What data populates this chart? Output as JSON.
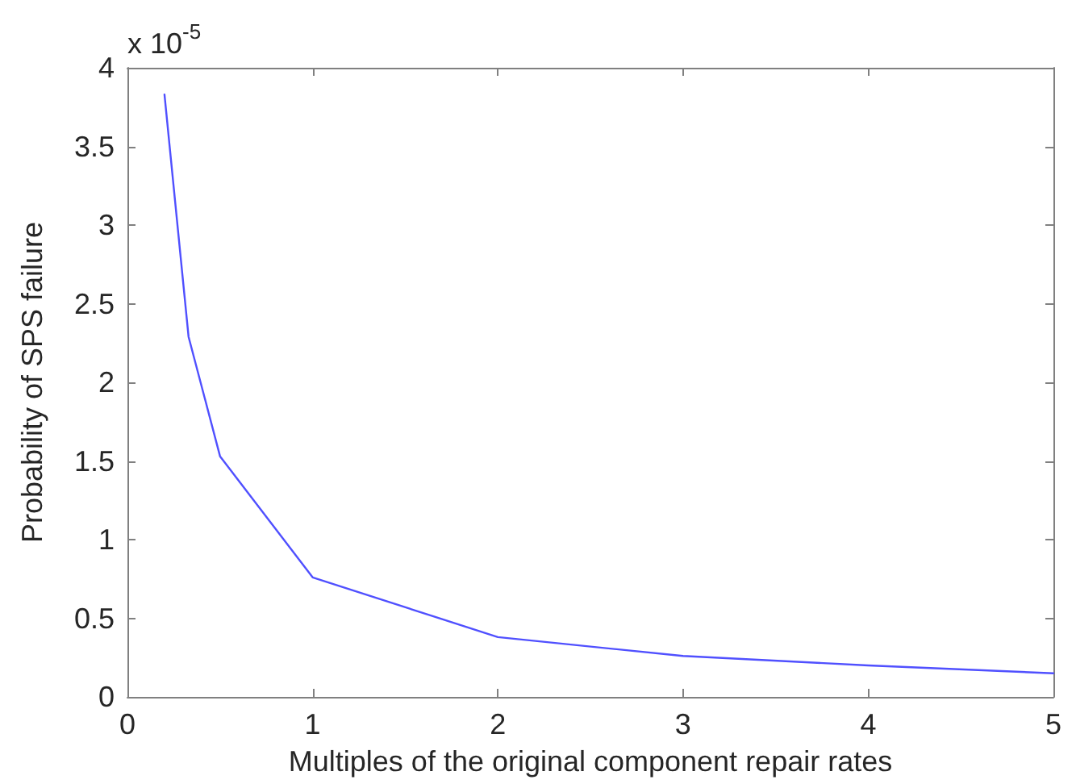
{
  "chart_data": {
    "type": "line",
    "xlabel": "Multiples of the original component repair rates",
    "ylabel": "Probability of SPS failure",
    "annotations": [
      "x 10$^{-5}$"
    ],
    "x": [
      0.2,
      0.33,
      0.5,
      1,
      2,
      3,
      4,
      5
    ],
    "series": [
      {
        "color": "#5050ff",
        "values": [
          3.83,
          2.29,
          1.53,
          0.76,
          0.38,
          0.26,
          0.2,
          0.15
        ]
      }
    ],
    "xlim": [
      0,
      5
    ],
    "xticks": [
      0,
      1,
      2,
      3,
      4,
      5
    ],
    "ylim": [
      0,
      4
    ],
    "yticks": [
      0,
      0.5,
      1,
      1.5,
      2,
      2.5,
      3,
      3.5,
      4
    ],
    "grid": false,
    "marker": "none",
    "line_style": "solid"
  }
}
